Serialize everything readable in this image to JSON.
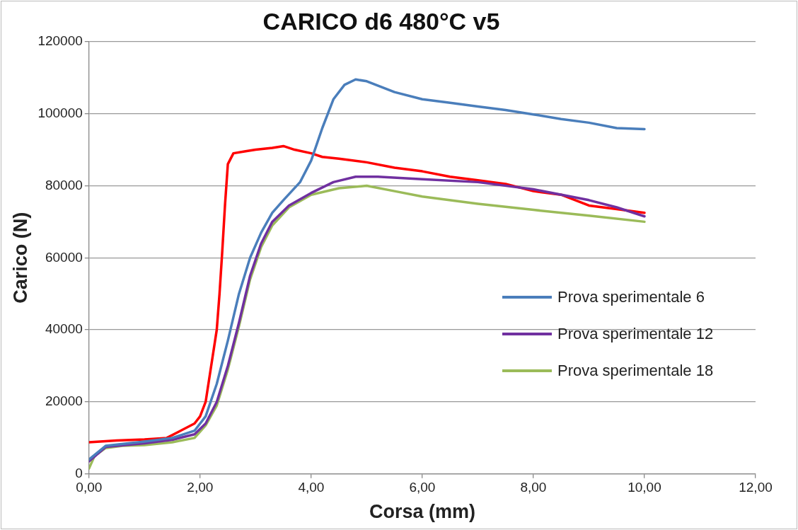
{
  "chart_data": {
    "type": "line",
    "title": "CARICO d6 480°C v5",
    "xlabel": "Corsa (mm)",
    "ylabel": "Carico (N)",
    "xlim": [
      0,
      12
    ],
    "xticks": [
      {
        "value": 0,
        "label": "0,00"
      },
      {
        "value": 2,
        "label": "2,00"
      },
      {
        "value": 4,
        "label": "4,00"
      },
      {
        "value": 6,
        "label": "6,00"
      },
      {
        "value": 8,
        "label": "8,00"
      },
      {
        "value": 10,
        "label": "10,00"
      },
      {
        "value": 12,
        "label": "12,00"
      }
    ],
    "ylim": [
      0,
      120000
    ],
    "yticks": [
      0,
      20000,
      40000,
      60000,
      80000,
      100000,
      120000
    ],
    "grid": "y",
    "legend": "center right",
    "marker": "none",
    "line_style": "solid",
    "series": [
      {
        "name": "Prova sperimentale 6",
        "color": "#4a7ebb",
        "x": [
          0,
          0.3,
          1,
          1.5,
          1.9,
          2.1,
          2.3,
          2.5,
          2.7,
          2.9,
          3.1,
          3.3,
          3.5,
          3.8,
          4.0,
          4.2,
          4.4,
          4.6,
          4.8,
          5.0,
          5.5,
          6.0,
          6.5,
          7,
          7.5,
          8,
          8.5,
          9,
          9.5,
          10
        ],
        "values": [
          4000,
          7800,
          9000,
          10000,
          12000,
          16000,
          25000,
          37000,
          50000,
          60000,
          67000,
          72500,
          76000,
          81000,
          87000,
          96000,
          104000,
          108000,
          109500,
          109000,
          106000,
          104000,
          103000,
          102000,
          101000,
          99800,
          98500,
          97500,
          96000,
          95700
        ]
      },
      {
        "name": "Prova sperimentale 12",
        "color": "#7030a0",
        "x": [
          0,
          0.3,
          1,
          1.5,
          1.9,
          2.1,
          2.3,
          2.5,
          2.7,
          2.9,
          3.1,
          3.3,
          3.6,
          4,
          4.4,
          4.8,
          5.2,
          6,
          7,
          8,
          9,
          9.5,
          10
        ],
        "values": [
          3500,
          7500,
          8500,
          9500,
          11000,
          14000,
          20000,
          30000,
          42000,
          55000,
          64000,
          70000,
          74500,
          78000,
          81000,
          82500,
          82500,
          81800,
          81000,
          79000,
          76000,
          74000,
          71500
        ]
      },
      {
        "name": "Prova sperimentale 18",
        "color": "#9bbb59",
        "x": [
          0,
          0.1,
          0.3,
          0.6,
          1,
          1.5,
          1.9,
          2.1,
          2.3,
          2.5,
          2.7,
          2.9,
          3.1,
          3.3,
          3.6,
          4,
          4.5,
          5,
          5.5,
          6,
          7,
          8,
          9,
          10
        ],
        "values": [
          1500,
          5000,
          7200,
          7800,
          8000,
          8800,
          10000,
          13500,
          19000,
          29000,
          41000,
          54000,
          63000,
          69000,
          74000,
          77500,
          79300,
          80000,
          78500,
          77000,
          75000,
          73300,
          71700,
          70000
        ]
      },
      {
        "color": "#ff0000",
        "x": [
          0,
          0.5,
          1,
          1.4,
          1.9,
          2.0,
          2.1,
          2.2,
          2.3,
          2.35,
          2.4,
          2.45,
          2.5,
          2.6,
          2.8,
          3.0,
          3.3,
          3.5,
          3.7,
          4.0,
          4.2,
          4.5,
          5,
          5.5,
          6,
          6.5,
          7,
          7.5,
          8,
          8.5,
          9,
          9.5,
          10
        ],
        "values": [
          8800,
          9300,
          9600,
          10000,
          14000,
          16000,
          20000,
          30000,
          40000,
          50000,
          62000,
          75000,
          86000,
          89000,
          89500,
          90000,
          90500,
          91000,
          90000,
          89000,
          88000,
          87500,
          86500,
          85000,
          84000,
          82500,
          81500,
          80500,
          78500,
          77500,
          74500,
          73500,
          72500
        ]
      }
    ]
  }
}
